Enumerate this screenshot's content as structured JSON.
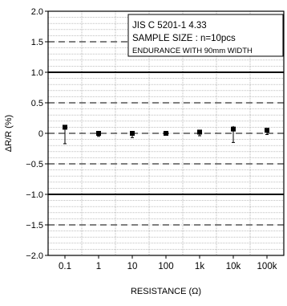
{
  "chart_data": {
    "type": "scatter",
    "title": "",
    "xlabel": "RESISTANCE (Ω)",
    "ylabel": "ΔR/R (%)",
    "ylim": [
      -2.0,
      2.0
    ],
    "y_ticks": [
      "2.0",
      "1.5",
      "1.0",
      "0.5",
      "0",
      "−0.5",
      "−1.0",
      "−1.5",
      "−2.0"
    ],
    "y_tick_values": [
      2.0,
      1.5,
      1.0,
      0.5,
      0,
      -0.5,
      -1.0,
      -1.5,
      -2.0
    ],
    "categories": [
      "0.1",
      "1",
      "10",
      "100",
      "1k",
      "10k",
      "100k"
    ],
    "grid": true,
    "series": [
      {
        "values": [
          0.1,
          0.0,
          0.0,
          0.0,
          0.02,
          0.07,
          0.05
        ],
        "max": [
          0.12,
          0.04,
          0.04,
          0.04,
          0.06,
          0.12,
          0.08
        ],
        "min": [
          -0.17,
          -0.05,
          -0.07,
          -0.03,
          -0.04,
          -0.15,
          -0.02
        ]
      }
    ],
    "limit_lines": [
      1.0,
      -1.0
    ],
    "annotation_lines": [
      "JIS C 5201-1 4.33",
      "SAMPLE SIZE : n=10pcs",
      "ENDURANCE WITH 90mm WIDTH"
    ]
  }
}
